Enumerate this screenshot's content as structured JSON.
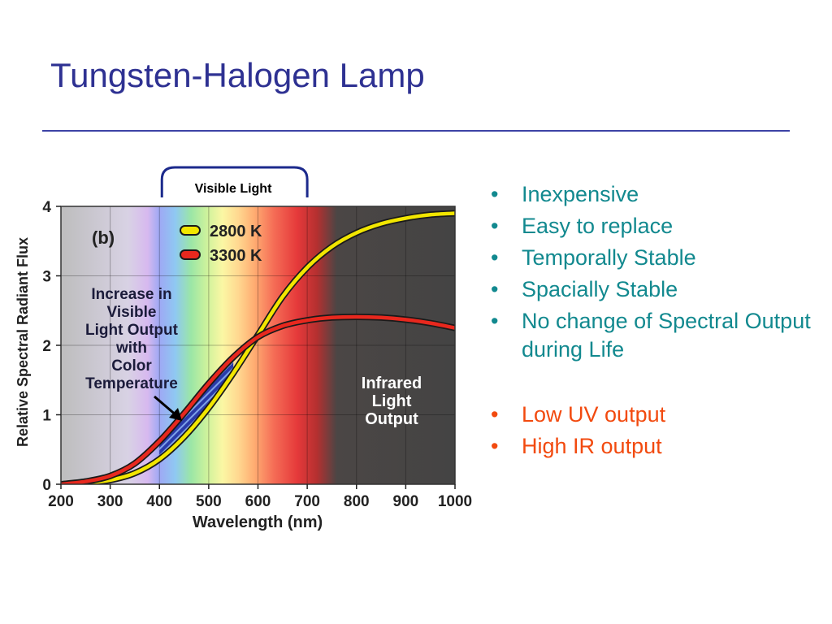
{
  "slide": {
    "title": "Tungsten-Halogen Lamp",
    "accent_title": "#2e3192",
    "accent_teal": "#12898f",
    "accent_orange": "#f24a0f"
  },
  "bullets": [
    {
      "text": "Inexpensive",
      "color": "teal"
    },
    {
      "text": "Easy to replace",
      "color": "teal"
    },
    {
      "text": "Temporally Stable",
      "color": "teal"
    },
    {
      "text": "Spacially Stable",
      "color": "teal"
    },
    {
      "text": "No change of Spectral Output during Life",
      "color": "teal"
    },
    {
      "text": "Low UV output",
      "color": "orange"
    },
    {
      "text": "High IR output",
      "color": "orange"
    }
  ],
  "bullet_symbol": "•",
  "chart_data": {
    "type": "line",
    "panel_label": "(b)",
    "xlabel": "Wavelength (nm)",
    "ylabel": "Relative Spectral Radiant Flux",
    "xlim": [
      200,
      1000
    ],
    "ylim": [
      0,
      4
    ],
    "xticks": [
      200,
      300,
      400,
      500,
      600,
      700,
      800,
      900,
      1000
    ],
    "yticks": [
      0,
      1,
      2,
      3,
      4
    ],
    "visible_band_nm": [
      400,
      700
    ],
    "legend_position": "top-center",
    "series": [
      {
        "name": "2800 K",
        "color": "#f2e600",
        "x": [
          200,
          250,
          300,
          350,
          400,
          450,
          500,
          550,
          600,
          650,
          700,
          750,
          800,
          850,
          900,
          950,
          1000
        ],
        "y": [
          0.0,
          0.02,
          0.06,
          0.16,
          0.36,
          0.68,
          1.1,
          1.6,
          2.15,
          2.7,
          3.12,
          3.42,
          3.62,
          3.75,
          3.83,
          3.88,
          3.9
        ]
      },
      {
        "name": "3300 K",
        "color": "#e8281e",
        "x": [
          200,
          250,
          300,
          350,
          400,
          450,
          500,
          550,
          600,
          650,
          700,
          750,
          800,
          850,
          900,
          950,
          1000
        ],
        "y": [
          0.0,
          0.04,
          0.12,
          0.3,
          0.62,
          1.02,
          1.45,
          1.83,
          2.12,
          2.28,
          2.36,
          2.4,
          2.41,
          2.4,
          2.37,
          2.32,
          2.25
        ]
      }
    ],
    "annotations": [
      {
        "text": "Increase in Visible Light Output with Color Temperature",
        "lines": [
          "Increase in",
          "Visible",
          "Light Output",
          "with",
          "Color",
          "Temperature"
        ]
      },
      {
        "text": "Infrared Light Output",
        "lines": [
          "Infrared",
          "Light",
          "Output"
        ]
      },
      {
        "text": "Visible Light"
      }
    ]
  }
}
